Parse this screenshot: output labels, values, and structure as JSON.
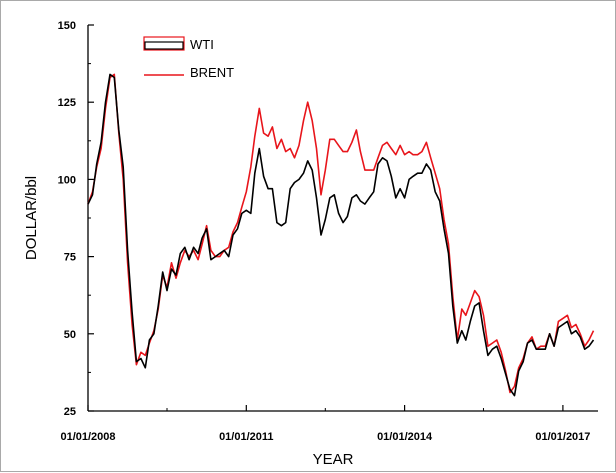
{
  "chart_data": {
    "type": "line",
    "xlabel": "YEAR",
    "ylabel": "DOLLAR/bbl",
    "xlim": [
      "2008-01-01",
      "2017-09-01"
    ],
    "ylim": [
      25,
      150
    ],
    "yticks": [
      25,
      50,
      75,
      100,
      125,
      150
    ],
    "xticks": [
      "2008-01-01",
      "2011-01-01",
      "2014-01-01",
      "2017-01-01"
    ],
    "xtick_labels": [
      "01/01/2008",
      "01/01/2011",
      "01/01/2014",
      "01/01/2017"
    ],
    "legend": {
      "position": "top-left"
    },
    "grid": false,
    "series": [
      {
        "name": "WTI",
        "color": "#000000",
        "points": [
          [
            "2008-01-01",
            92
          ],
          [
            "2008-02-01",
            95
          ],
          [
            "2008-03-01",
            105
          ],
          [
            "2008-04-01",
            112
          ],
          [
            "2008-05-01",
            125
          ],
          [
            "2008-06-01",
            134
          ],
          [
            "2008-07-01",
            133
          ],
          [
            "2008-08-01",
            116
          ],
          [
            "2008-09-01",
            104
          ],
          [
            "2008-10-01",
            77
          ],
          [
            "2008-11-01",
            57
          ],
          [
            "2008-12-01",
            41
          ],
          [
            "2009-01-01",
            42
          ],
          [
            "2009-02-01",
            39
          ],
          [
            "2009-03-01",
            48
          ],
          [
            "2009-04-01",
            50
          ],
          [
            "2009-05-01",
            59
          ],
          [
            "2009-06-01",
            70
          ],
          [
            "2009-07-01",
            64
          ],
          [
            "2009-08-01",
            71
          ],
          [
            "2009-09-01",
            69
          ],
          [
            "2009-10-01",
            76
          ],
          [
            "2009-11-01",
            78
          ],
          [
            "2009-12-01",
            74
          ],
          [
            "2010-01-01",
            78
          ],
          [
            "2010-02-01",
            76
          ],
          [
            "2010-03-01",
            81
          ],
          [
            "2010-04-01",
            84
          ],
          [
            "2010-05-01",
            74
          ],
          [
            "2010-06-01",
            75
          ],
          [
            "2010-07-01",
            76
          ],
          [
            "2010-08-01",
            77
          ],
          [
            "2010-09-01",
            75
          ],
          [
            "2010-10-01",
            82
          ],
          [
            "2010-11-01",
            84
          ],
          [
            "2010-12-01",
            89
          ],
          [
            "2011-01-01",
            90
          ],
          [
            "2011-02-01",
            89
          ],
          [
            "2011-03-01",
            102
          ],
          [
            "2011-04-01",
            110
          ],
          [
            "2011-05-01",
            101
          ],
          [
            "2011-06-01",
            97
          ],
          [
            "2011-07-01",
            97
          ],
          [
            "2011-08-01",
            86
          ],
          [
            "2011-09-01",
            85
          ],
          [
            "2011-10-01",
            86
          ],
          [
            "2011-11-01",
            97
          ],
          [
            "2011-12-01",
            99
          ],
          [
            "2012-01-01",
            100
          ],
          [
            "2012-02-01",
            102
          ],
          [
            "2012-03-01",
            106
          ],
          [
            "2012-04-01",
            103
          ],
          [
            "2012-05-01",
            94
          ],
          [
            "2012-06-01",
            82
          ],
          [
            "2012-07-01",
            87
          ],
          [
            "2012-08-01",
            94
          ],
          [
            "2012-09-01",
            95
          ],
          [
            "2012-10-01",
            89
          ],
          [
            "2012-11-01",
            86
          ],
          [
            "2012-12-01",
            88
          ],
          [
            "2013-01-01",
            94
          ],
          [
            "2013-02-01",
            95
          ],
          [
            "2013-03-01",
            93
          ],
          [
            "2013-04-01",
            92
          ],
          [
            "2013-05-01",
            94
          ],
          [
            "2013-06-01",
            96
          ],
          [
            "2013-07-01",
            105
          ],
          [
            "2013-08-01",
            107
          ],
          [
            "2013-09-01",
            106
          ],
          [
            "2013-10-01",
            101
          ],
          [
            "2013-11-01",
            94
          ],
          [
            "2013-12-01",
            97
          ],
          [
            "2014-01-01",
            94
          ],
          [
            "2014-02-01",
            100
          ],
          [
            "2014-03-01",
            101
          ],
          [
            "2014-04-01",
            102
          ],
          [
            "2014-05-01",
            102
          ],
          [
            "2014-06-01",
            105
          ],
          [
            "2014-07-01",
            103
          ],
          [
            "2014-08-01",
            96
          ],
          [
            "2014-09-01",
            93
          ],
          [
            "2014-10-01",
            84
          ],
          [
            "2014-11-01",
            76
          ],
          [
            "2014-12-01",
            59
          ],
          [
            "2015-01-01",
            47
          ],
          [
            "2015-02-01",
            51
          ],
          [
            "2015-03-01",
            48
          ],
          [
            "2015-04-01",
            54
          ],
          [
            "2015-05-01",
            59
          ],
          [
            "2015-06-01",
            60
          ],
          [
            "2015-07-01",
            51
          ],
          [
            "2015-08-01",
            43
          ],
          [
            "2015-09-01",
            45
          ],
          [
            "2015-10-01",
            46
          ],
          [
            "2015-11-01",
            42
          ],
          [
            "2015-12-01",
            37
          ],
          [
            "2016-01-01",
            32
          ],
          [
            "2016-02-01",
            30
          ],
          [
            "2016-03-01",
            38
          ],
          [
            "2016-04-01",
            41
          ],
          [
            "2016-05-01",
            47
          ],
          [
            "2016-06-01",
            48
          ],
          [
            "2016-07-01",
            45
          ],
          [
            "2016-08-01",
            45
          ],
          [
            "2016-09-01",
            45
          ],
          [
            "2016-10-01",
            50
          ],
          [
            "2016-11-01",
            46
          ],
          [
            "2016-12-01",
            52
          ],
          [
            "2017-01-01",
            53
          ],
          [
            "2017-02-01",
            54
          ],
          [
            "2017-03-01",
            50
          ],
          [
            "2017-04-01",
            51
          ],
          [
            "2017-05-01",
            49
          ],
          [
            "2017-06-01",
            45
          ],
          [
            "2017-07-01",
            46
          ],
          [
            "2017-08-01",
            48
          ]
        ]
      },
      {
        "name": "BRENT",
        "color": "#e8151b",
        "points": [
          [
            "2008-01-01",
            92
          ],
          [
            "2008-02-01",
            96
          ],
          [
            "2008-03-01",
            104
          ],
          [
            "2008-04-01",
            110
          ],
          [
            "2008-05-01",
            123
          ],
          [
            "2008-06-01",
            133
          ],
          [
            "2008-07-01",
            134
          ],
          [
            "2008-08-01",
            115
          ],
          [
            "2008-09-01",
            100
          ],
          [
            "2008-10-01",
            73
          ],
          [
            "2008-11-01",
            53
          ],
          [
            "2008-12-01",
            40
          ],
          [
            "2009-01-01",
            44
          ],
          [
            "2009-02-01",
            43
          ],
          [
            "2009-03-01",
            47
          ],
          [
            "2009-04-01",
            51
          ],
          [
            "2009-05-01",
            58
          ],
          [
            "2009-06-01",
            69
          ],
          [
            "2009-07-01",
            65
          ],
          [
            "2009-08-01",
            73
          ],
          [
            "2009-09-01",
            68
          ],
          [
            "2009-10-01",
            73
          ],
          [
            "2009-11-01",
            77
          ],
          [
            "2009-12-01",
            75
          ],
          [
            "2010-01-01",
            77
          ],
          [
            "2010-02-01",
            74
          ],
          [
            "2010-03-01",
            79
          ],
          [
            "2010-04-01",
            85
          ],
          [
            "2010-05-01",
            77
          ],
          [
            "2010-06-01",
            75
          ],
          [
            "2010-07-01",
            75
          ],
          [
            "2010-08-01",
            77
          ],
          [
            "2010-09-01",
            78
          ],
          [
            "2010-10-01",
            83
          ],
          [
            "2010-11-01",
            86
          ],
          [
            "2010-12-01",
            91
          ],
          [
            "2011-01-01",
            96
          ],
          [
            "2011-02-01",
            104
          ],
          [
            "2011-03-01",
            114
          ],
          [
            "2011-04-01",
            123
          ],
          [
            "2011-05-01",
            115
          ],
          [
            "2011-06-01",
            114
          ],
          [
            "2011-07-01",
            117
          ],
          [
            "2011-08-01",
            110
          ],
          [
            "2011-09-01",
            113
          ],
          [
            "2011-10-01",
            109
          ],
          [
            "2011-11-01",
            110
          ],
          [
            "2011-12-01",
            107
          ],
          [
            "2012-01-01",
            111
          ],
          [
            "2012-02-01",
            119
          ],
          [
            "2012-03-01",
            125
          ],
          [
            "2012-04-01",
            119
          ],
          [
            "2012-05-01",
            110
          ],
          [
            "2012-06-01",
            95
          ],
          [
            "2012-07-01",
            103
          ],
          [
            "2012-08-01",
            113
          ],
          [
            "2012-09-01",
            113
          ],
          [
            "2012-10-01",
            111
          ],
          [
            "2012-11-01",
            109
          ],
          [
            "2012-12-01",
            109
          ],
          [
            "2013-01-01",
            112
          ],
          [
            "2013-02-01",
            116
          ],
          [
            "2013-03-01",
            109
          ],
          [
            "2013-04-01",
            103
          ],
          [
            "2013-05-01",
            103
          ],
          [
            "2013-06-01",
            103
          ],
          [
            "2013-07-01",
            107
          ],
          [
            "2013-08-01",
            111
          ],
          [
            "2013-09-01",
            112
          ],
          [
            "2013-10-01",
            110
          ],
          [
            "2013-11-01",
            108
          ],
          [
            "2013-12-01",
            111
          ],
          [
            "2014-01-01",
            108
          ],
          [
            "2014-02-01",
            109
          ],
          [
            "2014-03-01",
            108
          ],
          [
            "2014-04-01",
            108
          ],
          [
            "2014-05-01",
            109
          ],
          [
            "2014-06-01",
            112
          ],
          [
            "2014-07-01",
            107
          ],
          [
            "2014-08-01",
            102
          ],
          [
            "2014-09-01",
            97
          ],
          [
            "2014-10-01",
            87
          ],
          [
            "2014-11-01",
            79
          ],
          [
            "2014-12-01",
            62
          ],
          [
            "2015-01-01",
            48
          ],
          [
            "2015-02-01",
            58
          ],
          [
            "2015-03-01",
            56
          ],
          [
            "2015-04-01",
            60
          ],
          [
            "2015-05-01",
            64
          ],
          [
            "2015-06-01",
            62
          ],
          [
            "2015-07-01",
            56
          ],
          [
            "2015-08-01",
            46
          ],
          [
            "2015-09-01",
            47
          ],
          [
            "2015-10-01",
            48
          ],
          [
            "2015-11-01",
            44
          ],
          [
            "2015-12-01",
            38
          ],
          [
            "2016-01-01",
            31
          ],
          [
            "2016-02-01",
            33
          ],
          [
            "2016-03-01",
            39
          ],
          [
            "2016-04-01",
            42
          ],
          [
            "2016-05-01",
            47
          ],
          [
            "2016-06-01",
            49
          ],
          [
            "2016-07-01",
            45
          ],
          [
            "2016-08-01",
            46
          ],
          [
            "2016-09-01",
            46
          ],
          [
            "2016-10-01",
            50
          ],
          [
            "2016-11-01",
            46
          ],
          [
            "2016-12-01",
            54
          ],
          [
            "2017-01-01",
            55
          ],
          [
            "2017-02-01",
            56
          ],
          [
            "2017-03-01",
            52
          ],
          [
            "2017-04-01",
            53
          ],
          [
            "2017-05-01",
            50
          ],
          [
            "2017-06-01",
            46
          ],
          [
            "2017-07-01",
            48
          ],
          [
            "2017-08-01",
            51
          ]
        ]
      }
    ]
  }
}
